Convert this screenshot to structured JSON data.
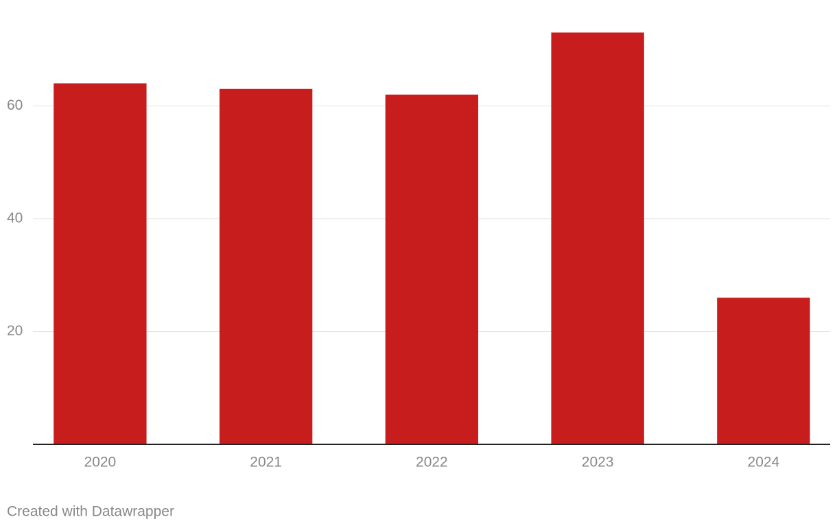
{
  "chart_data": {
    "type": "bar",
    "categories": [
      "2020",
      "2021",
      "2022",
      "2023",
      "2024"
    ],
    "values": [
      64,
      63,
      62,
      73,
      26
    ],
    "color": "#c71e1d",
    "ylim": [
      0,
      75
    ],
    "yticks": [
      20,
      40,
      60
    ],
    "grid": true,
    "credit": "Created with Datawrapper"
  }
}
